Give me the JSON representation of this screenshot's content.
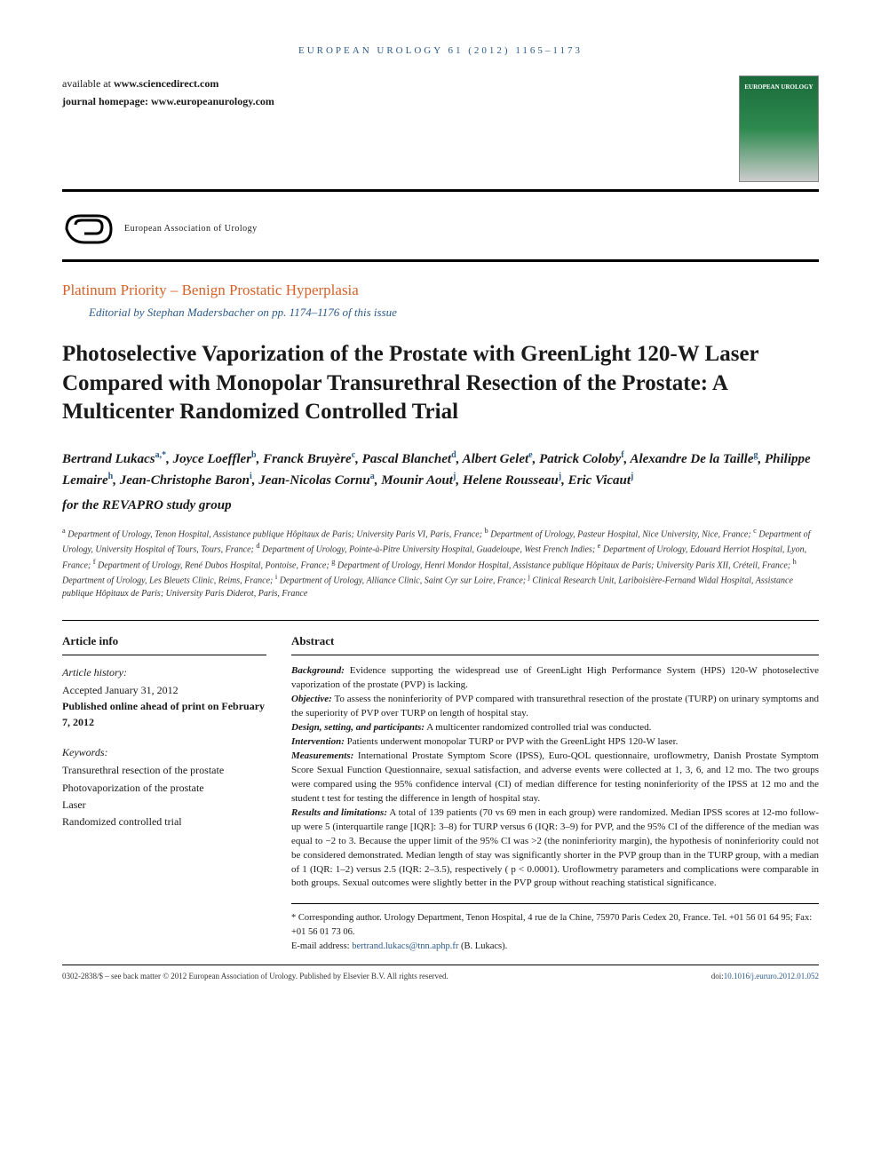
{
  "journal_ref": "EUROPEAN UROLOGY 61 (2012) 1165–1173",
  "availability": {
    "line1_prefix": "available at ",
    "line1_url": "www.sciencedirect.com",
    "line2_prefix": "journal homepage: ",
    "line2_url": "www.europeanurology.com"
  },
  "eau_org": "European Association of Urology",
  "section": "Platinum Priority – Benign Prostatic Hyperplasia",
  "editorial": "Editorial by Stephan Madersbacher on pp. 1174–1176 of this issue",
  "title": "Photoselective Vaporization of the Prostate with GreenLight 120-W Laser Compared with Monopolar Transurethral Resection of the Prostate: A Multicenter Randomized Controlled Trial",
  "authors_html": "Bertrand Lukacs<sup>a,*</sup>, Joyce Loeffler<sup>b</sup>, Franck Bruyère<sup>c</sup>, Pascal Blanchet<sup>d</sup>, Albert Gelet<sup>e</sup>, Patrick Coloby<sup>f</sup>, Alexandre De la Taille<sup>g</sup>, Philippe Lemaire<sup>h</sup>, Jean-Christophe Baron<sup>i</sup>, Jean-Nicolas Cornu<sup>a</sup>, Mounir Aout<sup>j</sup>, Helene Rousseau<sup>j</sup>, Eric Vicaut<sup>j</sup>",
  "study_group": "for the REVAPRO study group",
  "affiliations_html": "<sup>a</sup> Department of Urology, Tenon Hospital, Assistance publique Hôpitaux de Paris; University Paris VI, Paris, France; <sup>b</sup> Department of Urology, Pasteur Hospital, Nice University, Nice, France; <sup>c</sup> Department of Urology, University Hospital of Tours, Tours, France; <sup>d</sup> Department of Urology, Pointe-à-Pitre University Hospital, Guadeloupe, West French Indies; <sup>e</sup> Department of Urology, Edouard Herriot Hospital, Lyon, France; <sup>f</sup> Department of Urology, René Dubos Hospital, Pontoise, France; <sup>g</sup> Department of Urology, Henri Mondor Hospital, Assistance publique Hôpitaux de Paris; University Paris XII, Créteil, France; <sup>h</sup> Department of Urology, Les Bleuets Clinic, Reims, France; <sup>i</sup> Department of Urology, Alliance Clinic, Saint Cyr sur Loire, France; <sup>j</sup> Clinical Research Unit, Lariboisière-Fernand Widal Hospital, Assistance publique Hôpitaux de Paris; University Paris Diderot, Paris, France",
  "article_info": {
    "heading": "Article info",
    "history_label": "Article history:",
    "accepted": "Accepted January 31, 2012",
    "published": "Published online ahead of print on February 7, 2012",
    "keywords_label": "Keywords:",
    "keywords": [
      "Transurethral resection of the prostate",
      "Photovaporization of the prostate",
      "Laser",
      "Randomized controlled trial"
    ]
  },
  "abstract": {
    "heading": "Abstract",
    "background_label": "Background:",
    "background": "Evidence supporting the widespread use of GreenLight High Performance System (HPS) 120-W photoselective vaporization of the prostate (PVP) is lacking.",
    "objective_label": "Objective:",
    "objective": "To assess the noninferiority of PVP compared with transurethral resection of the prostate (TURP) on urinary symptoms and the superiority of PVP over TURP on length of hospital stay.",
    "design_label": "Design, setting, and participants:",
    "design": "A multicenter randomized controlled trial was conducted.",
    "intervention_label": "Intervention:",
    "intervention": "Patients underwent monopolar TURP or PVP with the GreenLight HPS 120-W laser.",
    "measurements_label": "Measurements:",
    "measurements": "International Prostate Symptom Score (IPSS), Euro-QOL questionnaire, uroflowmetry, Danish Prostate Symptom Score Sexual Function Questionnaire, sexual satisfaction, and adverse events were collected at 1, 3, 6, and 12 mo. The two groups were compared using the 95% confidence interval (CI) of median difference for testing noninferiority of the IPSS at 12 mo and the student t test for testing the difference in length of hospital stay.",
    "results_label": "Results and limitations:",
    "results": "A total of 139 patients (70 vs 69 men in each group) were randomized. Median IPSS scores at 12-mo follow-up were 5 (interquartile range [IQR]: 3–8) for TURP versus 6 (IQR: 3–9) for PVP, and the 95% CI of the difference of the median was equal to −2 to 3. Because the upper limit of the 95% CI was >2 (the noninferiority margin), the hypothesis of noninferiority could not be considered demonstrated. Median length of stay was significantly shorter in the PVP group than in the TURP group, with a median of 1 (IQR: 1–2) versus 2.5 (IQR: 2–3.5), respectively ( p < 0.0001). Uroflowmetry parameters and complications were comparable in both groups. Sexual outcomes were slightly better in the PVP group without reaching statistical significance."
  },
  "corresponding": {
    "text": "* Corresponding author. Urology Department, Tenon Hospital, 4 rue de la Chine, 75970 Paris Cedex 20, France. Tel. +01 56 01 64 95; Fax: +01 56 01 73 06.",
    "email_label": "E-mail address:",
    "email": "bertrand.lukacs@tnn.aphp.fr",
    "email_suffix": "(B. Lukacs)."
  },
  "footer": {
    "left": "0302-2838/$ – see back matter © 2012 European Association of Urology. Published by Elsevier B.V. All rights reserved.",
    "doi_label": "doi:",
    "doi": "10.1016/j.eururo.2012.01.052"
  },
  "colors": {
    "link_blue": "#2a5a8a",
    "section_orange": "#d4622a",
    "rule": "#000000"
  }
}
